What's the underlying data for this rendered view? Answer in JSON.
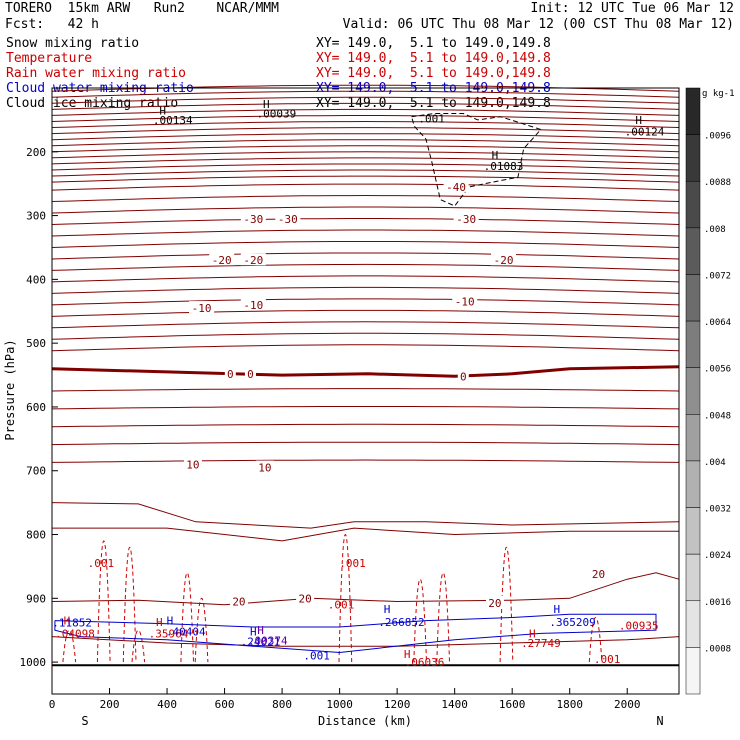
{
  "header": {
    "model": "TORERO  15km ARW   Run2    NCAR/MMM",
    "init": "Init: 12 UTC Tue 06 Mar 12",
    "fcst": "Fcst:   42 h",
    "valid": "Valid: 06 UTC Thu 08 Mar 12 (00 CST Thu 08 Mar 12)"
  },
  "fields": [
    {
      "name": "Snow mixing ratio",
      "xy": "XY= 149.0,  5.1 to 149.0,149.8",
      "color": "#000000"
    },
    {
      "name": "Temperature",
      "xy": "XY= 149.0,  5.1 to 149.0,149.8",
      "color": "#cc0000"
    },
    {
      "name": "Rain water mixing ratio",
      "xy": "XY= 149.0,  5.1 to 149.0,149.8",
      "color": "#cc0000"
    },
    {
      "name": "Cloud water mixing ratio",
      "xy": "XY= 149.0,  5.1 to 149.0,149.8",
      "color": "#0000cc"
    },
    {
      "name": "Cloud ice mixing ratio",
      "xy": "XY= 149.0,  5.1 to 149.0,149.8",
      "color": "#000000"
    }
  ],
  "chart_data": {
    "type": "cross-section contour",
    "xlabel": "Distance (km)",
    "ylabel": "Pressure (hPa)",
    "xlim": [
      0,
      2180
    ],
    "ylim": [
      1050,
      100
    ],
    "x_ticks": [
      "0",
      "200",
      "400",
      "600",
      "800",
      "1000",
      "1200",
      "1400",
      "1600",
      "1800",
      "2000"
    ],
    "y_ticks": [
      "200",
      "300",
      "400",
      "500",
      "600",
      "700",
      "800",
      "900",
      "1000"
    ],
    "end_labels": {
      "left": "S",
      "right": "N"
    },
    "temperature_labels": [
      {
        "text": "-40",
        "x": 1405,
        "p": 255
      },
      {
        "text": "-30",
        "x": 700,
        "p": 305
      },
      {
        "text": "-30",
        "x": 820,
        "p": 305
      },
      {
        "text": "-30",
        "x": 1440,
        "p": 305
      },
      {
        "text": "-20",
        "x": 590,
        "p": 370
      },
      {
        "text": "-20",
        "x": 700,
        "p": 370
      },
      {
        "text": "-20",
        "x": 1570,
        "p": 370
      },
      {
        "text": "-10",
        "x": 520,
        "p": 445
      },
      {
        "text": "-10",
        "x": 700,
        "p": 440
      },
      {
        "text": "-10",
        "x": 1435,
        "p": 435
      },
      {
        "text": "0",
        "x": 620,
        "p": 548
      },
      {
        "text": "0",
        "x": 690,
        "p": 548
      },
      {
        "text": "0",
        "x": 1430,
        "p": 552
      },
      {
        "text": "10",
        "x": 490,
        "p": 690
      },
      {
        "text": "10",
        "x": 740,
        "p": 695
      },
      {
        "text": "20",
        "x": 650,
        "p": 905
      },
      {
        "text": "20",
        "x": 880,
        "p": 900
      },
      {
        "text": "20",
        "x": 1540,
        "p": 907
      },
      {
        "text": "20",
        "x": 1900,
        "p": 862
      }
    ],
    "snow_labels": [
      {
        "text": "H",
        "x": 385,
        "p": 135
      },
      {
        "text": ".00134",
        "x": 420,
        "p": 150
      },
      {
        "text": "H",
        "x": 745,
        "p": 125
      },
      {
        "text": ".00039",
        "x": 780,
        "p": 140
      },
      {
        "text": ".001",
        "x": 1320,
        "p": 148
      },
      {
        "text": "H",
        "x": 2040,
        "p": 150
      },
      {
        "text": ".00124",
        "x": 2060,
        "p": 168
      },
      {
        "text": "H",
        "x": 1540,
        "p": 205
      },
      {
        "text": ".01083",
        "x": 1570,
        "p": 222
      }
    ],
    "rain_labels": [
      {
        "text": ".001",
        "x": 170,
        "p": 845
      },
      {
        "text": ".001",
        "x": 1045,
        "p": 845
      },
      {
        "text": ".001",
        "x": 1005,
        "p": 910
      },
      {
        "text": ".001",
        "x": 1930,
        "p": 995
      },
      {
        "text": "H",
        "x": 52,
        "p": 935
      },
      {
        "text": ".04098",
        "x": 80,
        "p": 955
      },
      {
        "text": "H",
        "x": 373,
        "p": 937
      },
      {
        "text": ".35964",
        "x": 405,
        "p": 955
      },
      {
        "text": "H",
        "x": 1235,
        "p": 987
      },
      {
        "text": ".06036",
        "x": 1295,
        "p": 1000
      },
      {
        "text": "H",
        "x": 1670,
        "p": 955
      },
      {
        "text": ".27749",
        "x": 1700,
        "p": 970
      },
      {
        "text": ".00935",
        "x": 2040,
        "p": 943
      }
    ],
    "cloud_water_labels": [
      {
        "text": ".11852",
        "x": 70,
        "p": 938
      },
      {
        "text": "H",
        "x": 410,
        "p": 935
      },
      {
        "text": ".40404",
        "x": 465,
        "p": 952
      },
      {
        "text": "H",
        "x": 700,
        "p": 952
      },
      {
        "text": ".24021",
        "x": 725,
        "p": 968
      },
      {
        "text": "H",
        "x": 1165,
        "p": 917
      },
      {
        "text": ".266852",
        "x": 1215,
        "p": 937
      },
      {
        "text": "H",
        "x": 1755,
        "p": 917
      },
      {
        "text": ".365209",
        "x": 1810,
        "p": 937
      },
      {
        "text": ".001",
        "x": 920,
        "p": 990
      }
    ],
    "cloud_ice_labels": [
      {
        "text": "H",
        "x": 725,
        "p": 950
      },
      {
        "text": ".00374",
        "x": 750,
        "p": 966
      }
    ],
    "colorbar": {
      "unit": "g kg-1",
      "labels": [
        ".0096",
        ".0088",
        ".008",
        ".0072",
        ".0064",
        ".0056",
        ".0048",
        ".004",
        ".0032",
        ".0024",
        ".0016",
        ".0008"
      ],
      "levels": [
        0.0104,
        0.0096,
        0.0088,
        0.008,
        0.0072,
        0.0064,
        0.0056,
        0.0048,
        0.004,
        0.0032,
        0.0024,
        0.0016,
        0.0008,
        0.0
      ]
    }
  }
}
